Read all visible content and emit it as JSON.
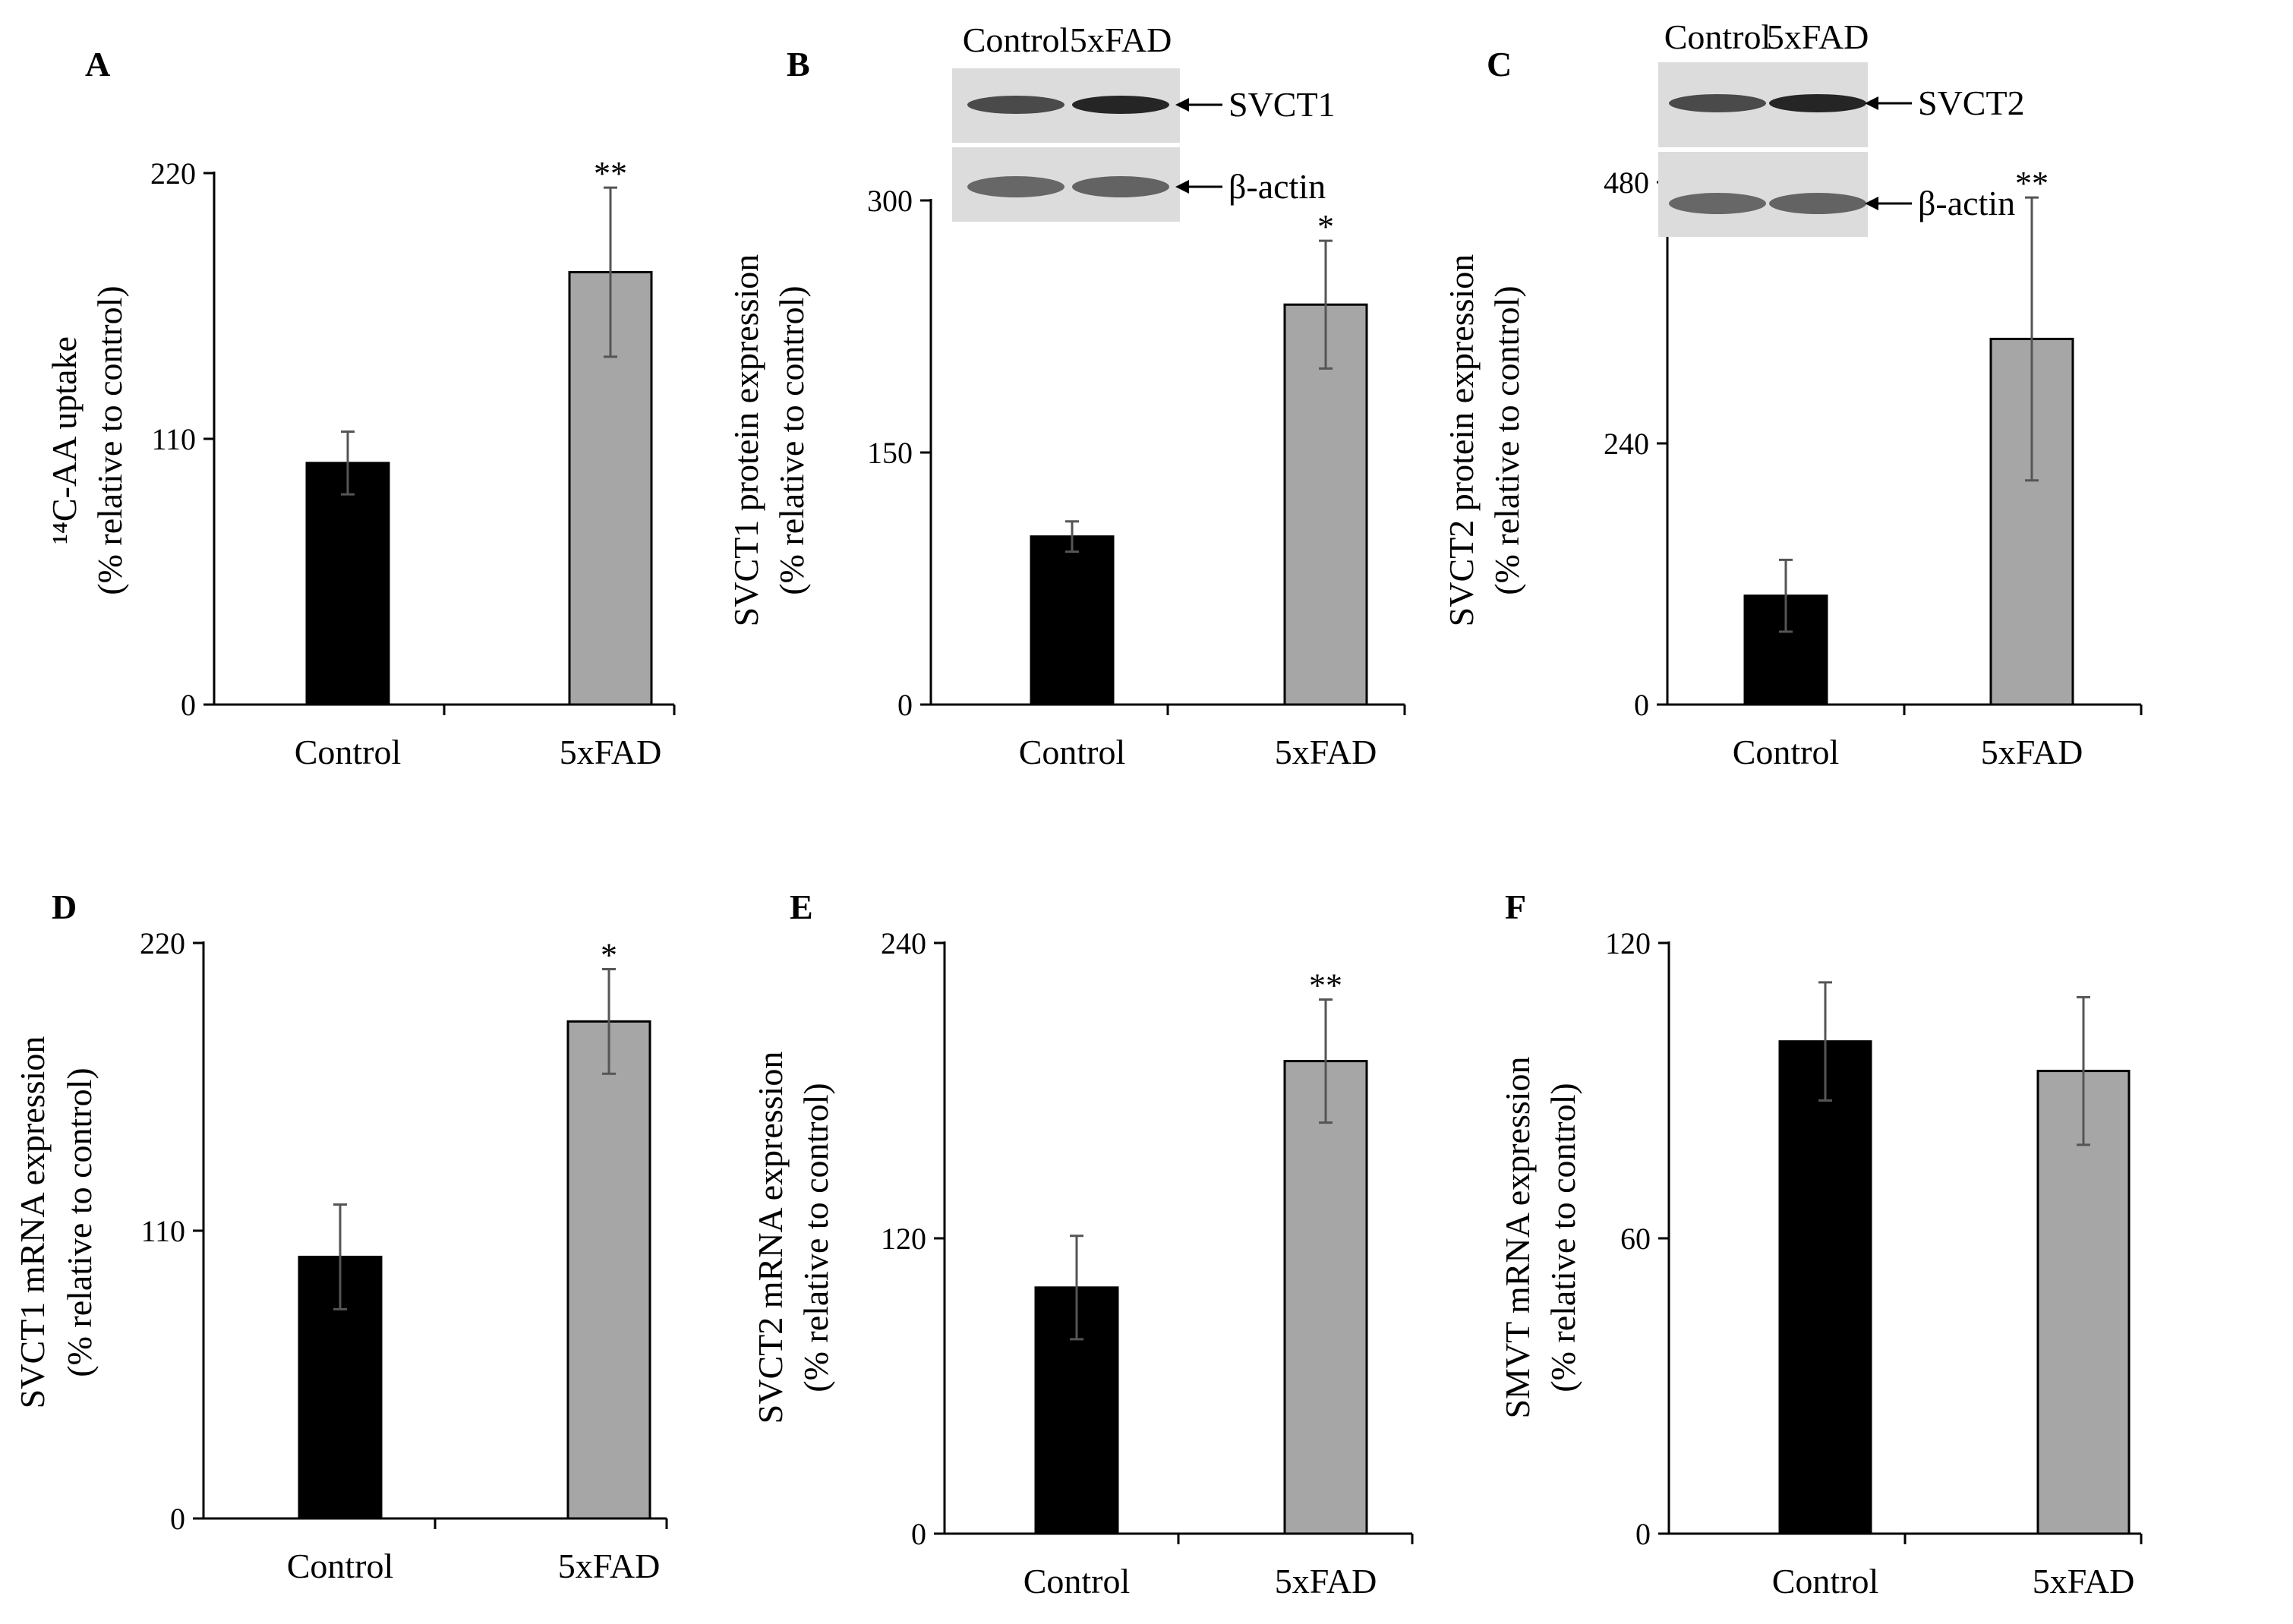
{
  "chart_data": [
    {
      "panel": "A",
      "type": "bar",
      "categories": [
        "Control",
        "5xFAD"
      ],
      "values": [
        100,
        179
      ],
      "errors": [
        13,
        35
      ],
      "bar_colors": [
        "#000000",
        "#a6a6a6"
      ],
      "significance": [
        "",
        "**"
      ],
      "ylabel_lines": [
        "¹⁴C-AA uptake",
        "(% relative to control)"
      ],
      "yticks": [
        0,
        110,
        220
      ],
      "ylim": [
        0,
        220
      ]
    },
    {
      "panel": "B",
      "type": "bar",
      "categories": [
        "Control",
        "5xFAD"
      ],
      "values": [
        100,
        238
      ],
      "errors": [
        9,
        38
      ],
      "bar_colors": [
        "#000000",
        "#a6a6a6"
      ],
      "significance": [
        "",
        "*"
      ],
      "ylabel_lines": [
        "SVCT1 protein expression",
        "(% relative to control)"
      ],
      "yticks": [
        0,
        150,
        300
      ],
      "ylim": [
        0,
        300
      ],
      "blot": {
        "lanes": [
          "Control",
          "5xFAD"
        ],
        "bands": [
          "SVCT1",
          "β-actin"
        ]
      }
    },
    {
      "panel": "C",
      "type": "bar",
      "categories": [
        "Control",
        "5xFAD"
      ],
      "values": [
        100,
        336
      ],
      "errors": [
        33,
        130
      ],
      "bar_colors": [
        "#000000",
        "#a6a6a6"
      ],
      "significance": [
        "",
        "**"
      ],
      "ylabel_lines": [
        "SVCT2 protein expression",
        "(% relative to control)"
      ],
      "yticks": [
        0,
        240,
        480
      ],
      "ylim": [
        0,
        480
      ],
      "blot": {
        "lanes": [
          "Control",
          "5xFAD"
        ],
        "bands": [
          "SVCT2",
          "β-actin"
        ]
      }
    },
    {
      "panel": "D",
      "type": "bar",
      "categories": [
        "Control",
        "5xFAD"
      ],
      "values": [
        100,
        190
      ],
      "errors": [
        20,
        20
      ],
      "bar_colors": [
        "#000000",
        "#a6a6a6"
      ],
      "significance": [
        "",
        "*"
      ],
      "ylabel_lines": [
        "SVCT1 mRNA expression",
        "(% relative to control)"
      ],
      "yticks": [
        0,
        110,
        220
      ],
      "ylim": [
        0,
        220
      ]
    },
    {
      "panel": "E",
      "type": "bar",
      "categories": [
        "Control",
        "5xFAD"
      ],
      "values": [
        100,
        192
      ],
      "errors": [
        21,
        25
      ],
      "bar_colors": [
        "#000000",
        "#a6a6a6"
      ],
      "significance": [
        "",
        "**"
      ],
      "ylabel_lines": [
        "SVCT2 mRNA expression",
        "(% relative to control)"
      ],
      "yticks": [
        0,
        120,
        240
      ],
      "ylim": [
        0,
        240
      ]
    },
    {
      "panel": "F",
      "type": "bar",
      "categories": [
        "Control",
        "5xFAD"
      ],
      "values": [
        100,
        94
      ],
      "errors": [
        12,
        15
      ],
      "bar_colors": [
        "#000000",
        "#a6a6a6"
      ],
      "significance": [
        "",
        ""
      ],
      "ylabel_lines": [
        "SMVT mRNA expression",
        "(% relative to control)"
      ],
      "yticks": [
        0,
        60,
        120
      ],
      "ylim": [
        0,
        120
      ]
    }
  ]
}
